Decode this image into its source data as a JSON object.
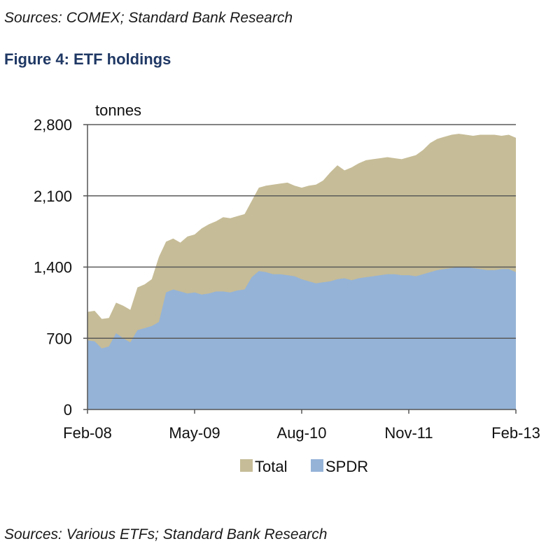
{
  "header": {
    "source_top": "Sources: COMEX; Standard Bank Research",
    "figure_title": "Figure 4: ETF holdings"
  },
  "footer": {
    "source_bottom": "Sources: Various ETFs; Standard Bank Research"
  },
  "chart_data": {
    "type": "area",
    "title": "Figure 4: ETF holdings",
    "unit_label": "tonnes",
    "xlabel": "",
    "ylabel": "",
    "ylim": [
      0,
      2800
    ],
    "yticks": [
      {
        "value": 0,
        "label": "0"
      },
      {
        "value": 700,
        "label": "700"
      },
      {
        "value": 1400,
        "label": "1,400"
      },
      {
        "value": 2100,
        "label": "2,100"
      },
      {
        "value": 2800,
        "label": "2,800"
      }
    ],
    "xticks": [
      "Feb-08",
      "May-09",
      "Aug-10",
      "Nov-11",
      "Feb-13"
    ],
    "x": [
      "Feb-08",
      "Mar-08",
      "Apr-08",
      "May-08",
      "Jun-08",
      "Jul-08",
      "Aug-08",
      "Sep-08",
      "Oct-08",
      "Nov-08",
      "Dec-08",
      "Jan-09",
      "Feb-09",
      "Mar-09",
      "Apr-09",
      "May-09",
      "Jun-09",
      "Jul-09",
      "Aug-09",
      "Sep-09",
      "Oct-09",
      "Nov-09",
      "Dec-09",
      "Jan-10",
      "Feb-10",
      "Mar-10",
      "Apr-10",
      "May-10",
      "Jun-10",
      "Jul-10",
      "Aug-10",
      "Sep-10",
      "Oct-10",
      "Nov-10",
      "Dec-10",
      "Jan-11",
      "Feb-11",
      "Mar-11",
      "Apr-11",
      "May-11",
      "Jun-11",
      "Jul-11",
      "Aug-11",
      "Sep-11",
      "Oct-11",
      "Nov-11",
      "Dec-11",
      "Jan-12",
      "Feb-12",
      "Mar-12",
      "Apr-12",
      "May-12",
      "Jun-12",
      "Jul-12",
      "Aug-12",
      "Sep-12",
      "Oct-12",
      "Nov-12",
      "Dec-12",
      "Jan-13",
      "Feb-13"
    ],
    "series": [
      {
        "name": "Total",
        "color": "#c6bc97",
        "values": [
          960,
          970,
          890,
          900,
          1050,
          1020,
          980,
          1200,
          1230,
          1280,
          1500,
          1650,
          1680,
          1640,
          1700,
          1720,
          1780,
          1820,
          1850,
          1890,
          1880,
          1900,
          1920,
          2050,
          2180,
          2200,
          2210,
          2220,
          2230,
          2200,
          2180,
          2200,
          2210,
          2250,
          2330,
          2400,
          2350,
          2380,
          2420,
          2450,
          2460,
          2470,
          2480,
          2470,
          2460,
          2480,
          2500,
          2550,
          2620,
          2660,
          2680,
          2700,
          2710,
          2700,
          2690,
          2700,
          2700,
          2700,
          2690,
          2700,
          2670
        ]
      },
      {
        "name": "SPDR",
        "color": "#95b3d7",
        "values": [
          680,
          670,
          600,
          620,
          750,
          700,
          660,
          780,
          800,
          820,
          860,
          1150,
          1180,
          1160,
          1140,
          1150,
          1130,
          1140,
          1160,
          1160,
          1150,
          1170,
          1180,
          1300,
          1360,
          1350,
          1330,
          1330,
          1320,
          1310,
          1280,
          1260,
          1240,
          1250,
          1260,
          1280,
          1290,
          1270,
          1290,
          1300,
          1310,
          1320,
          1330,
          1330,
          1320,
          1320,
          1310,
          1330,
          1350,
          1370,
          1380,
          1390,
          1400,
          1400,
          1390,
          1380,
          1370,
          1370,
          1380,
          1380,
          1350
        ]
      }
    ],
    "legend": {
      "position": "bottom",
      "entries": [
        "Total",
        "SPDR"
      ]
    },
    "grid": {
      "horizontal": true,
      "vertical": false
    }
  }
}
